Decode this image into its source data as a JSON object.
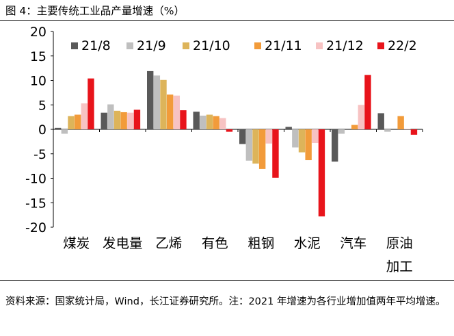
{
  "figure_title": "图 4：主要传统工业品产量增速（%）",
  "source_note": "资料来源：国家统计局，Wind，长江证券研究所。注：2021 年增速为各行业增加值两年平均增速。",
  "colors": {
    "21/8": "#595959",
    "21/9": "#bfbfbf",
    "21/10": "#ddb45a",
    "21/11": "#f29b3a",
    "21/12": "#f7c3c3",
    "22/2": "#e8141b"
  },
  "chart_data": {
    "type": "bar",
    "title": "主要传统工业品产量增速（%）",
    "xlabel": "",
    "ylabel": "%",
    "ylim": [
      -20,
      20
    ],
    "yticks": [
      20,
      15,
      10,
      5,
      0,
      -5,
      -10,
      -15,
      -20
    ],
    "categories": [
      "煤炭",
      "发电量",
      "乙烯",
      "有色",
      "粗钢",
      "水泥",
      "汽车",
      "原油加工"
    ],
    "legend_position": "top",
    "series": [
      {
        "name": "21/8",
        "values": [
          0.3,
          3.4,
          11.9,
          3.6,
          -3.0,
          0.5,
          -6.6,
          3.3
        ]
      },
      {
        "name": "21/9",
        "values": [
          -0.9,
          5.1,
          11.0,
          2.8,
          -6.4,
          -3.7,
          -0.9,
          -0.5
        ]
      },
      {
        "name": "21/10",
        "values": [
          2.7,
          3.8,
          10.1,
          3.0,
          -7.0,
          -4.7,
          0.0,
          0.0
        ]
      },
      {
        "name": "21/11",
        "values": [
          3.0,
          3.5,
          7.1,
          2.7,
          -8.1,
          -6.3,
          0.9,
          2.7
        ]
      },
      {
        "name": "21/12",
        "values": [
          5.3,
          3.4,
          6.9,
          2.3,
          -2.9,
          -2.8,
          5.0,
          0.1
        ]
      },
      {
        "name": "22/2",
        "values": [
          10.4,
          4.0,
          3.9,
          -0.5,
          -9.9,
          -17.8,
          11.1,
          -1.1
        ]
      }
    ]
  }
}
